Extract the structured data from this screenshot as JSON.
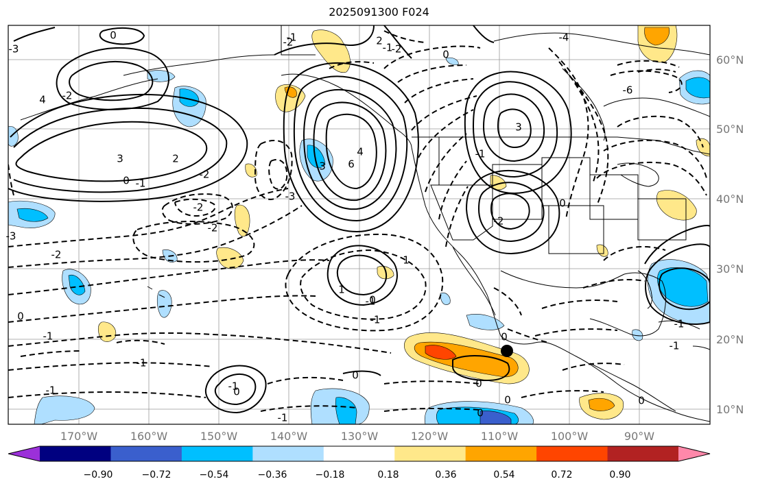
{
  "title": "2025091300 F024",
  "lon_labels": [
    "170°W",
    "160°W",
    "150°W",
    "140°W",
    "130°W",
    "120°W",
    "110°W",
    "100°W",
    "90°W"
  ],
  "lat_labels": [
    "60°N",
    "50°N",
    "40°N",
    "30°N",
    "20°N",
    "10°N"
  ],
  "colorbar": {
    "tick_labels": [
      "−0.90",
      "−0.72",
      "−0.54",
      "−0.36",
      "−0.18",
      "0.18",
      "0.36",
      "0.54",
      "0.72",
      "0.90"
    ],
    "colors": [
      "#9b30d9",
      "#000080",
      "#3a5fcd",
      "#00bfff",
      "#afdfff",
      "#ffffff",
      "#ffe88a",
      "#ffa500",
      "#ff4500",
      "#b22222",
      "#ff88aa"
    ]
  },
  "contour_labels": [
    "-3",
    "0",
    "-2",
    "2",
    "-1",
    "-4",
    "-2",
    "-6",
    "-2",
    "4",
    "3",
    "2",
    "0",
    "-1",
    "-2",
    "-2",
    "-2",
    "-3",
    "6",
    "4",
    "3",
    "-1",
    "0",
    "-1",
    "-2",
    "0",
    "-3",
    "3",
    "-1",
    "0",
    "-2",
    "-1",
    "-1",
    "0",
    "0",
    "0",
    "-1",
    "1",
    "0",
    "-1",
    "0",
    "-1",
    "0",
    "-1",
    "-1",
    "0",
    "1",
    "0",
    "-1"
  ],
  "marker": "black-dot"
}
